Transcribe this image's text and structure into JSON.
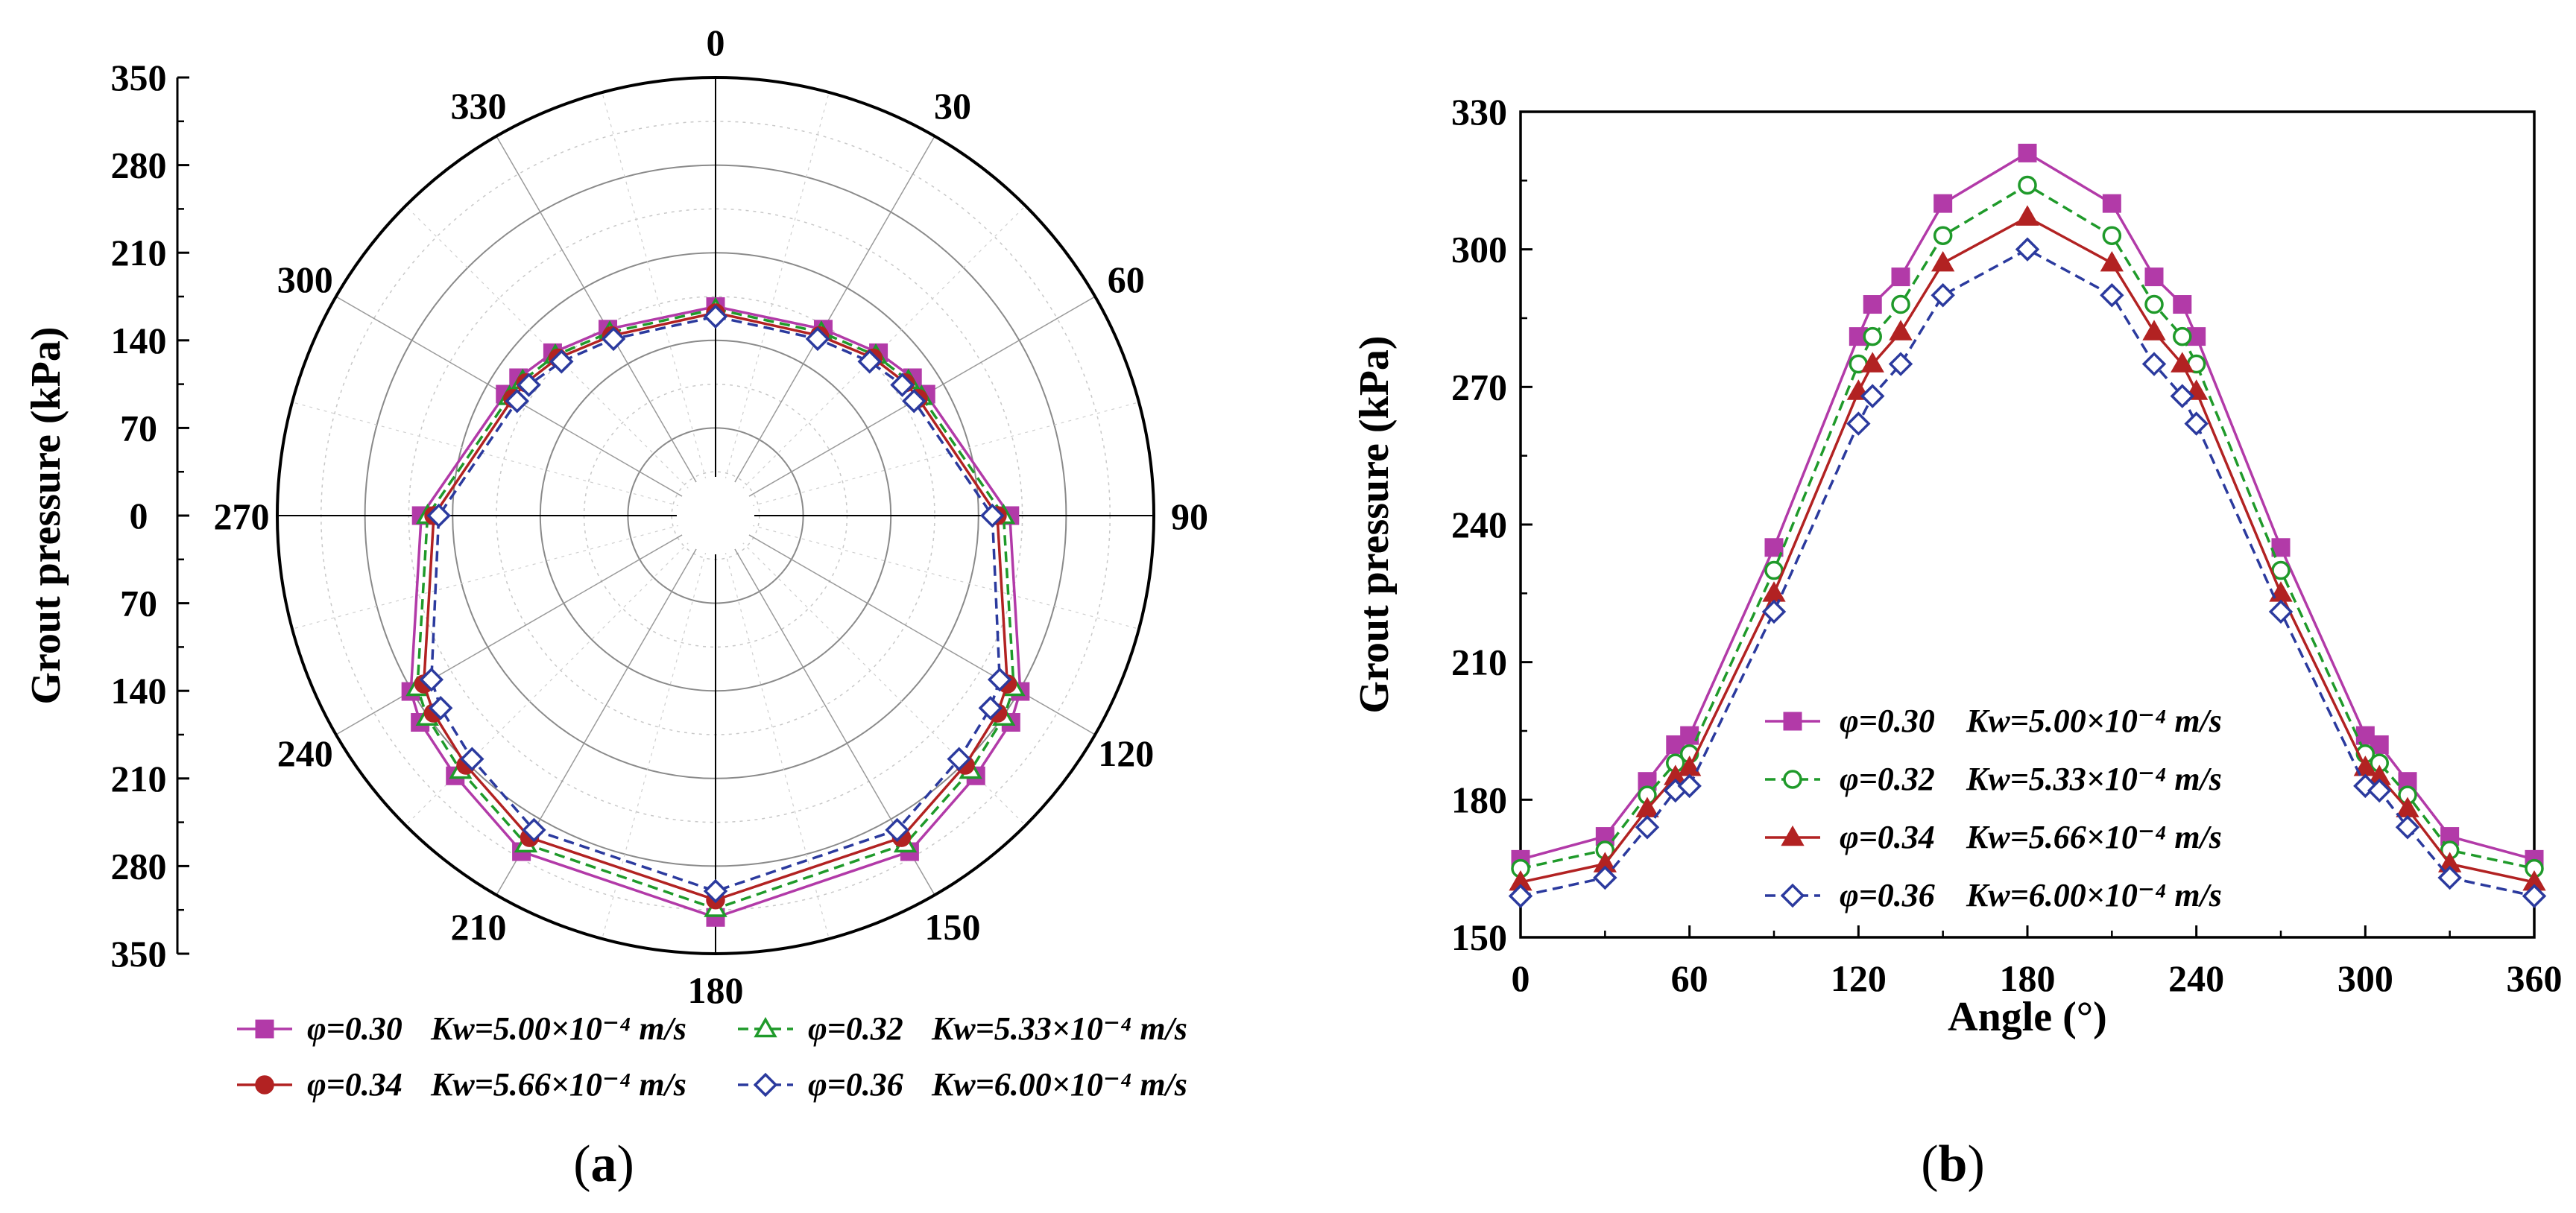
{
  "chart_data": [
    {
      "type": "polar-line",
      "panel_label": "a",
      "title": "",
      "ylabel": "Grout pressure (kPa)",
      "radial_ticks": [
        "350",
        "280",
        "210",
        "140",
        "70",
        "0",
        "70",
        "140",
        "210",
        "280",
        "350"
      ],
      "angle_ticks": [
        "0",
        "30",
        "60",
        "90",
        "120",
        "150",
        "180",
        "210",
        "240",
        "270",
        "300",
        "330"
      ],
      "rlim": [
        0,
        350
      ],
      "angles": [
        0,
        30,
        45,
        55,
        60,
        90,
        120,
        125,
        135,
        150,
        180,
        210,
        225,
        235,
        240,
        270,
        300,
        305,
        315,
        330
      ],
      "series": [
        {
          "name": "φ=0.30  Kw=5.00×10⁻⁴ m/s",
          "label_phi": "φ=0.30",
          "label_k": "Kw=5.00×10⁻⁴ m/s",
          "color": "#b23aa8",
          "dash": "",
          "marker": "square-filled",
          "values": [
            167,
            172,
            184,
            192,
            194,
            235,
            281,
            288,
            294,
            310,
            321,
            310,
            294,
            288,
            281,
            235,
            194,
            192,
            184,
            172
          ]
        },
        {
          "name": "φ=0.32  Kw=5.33×10⁻⁴ m/s",
          "label_phi": "φ=0.32",
          "label_k": "Kw=5.33×10⁻⁴ m/s",
          "color": "#1f9a2a",
          "dash": "14,8",
          "marker": "triangle-open",
          "values": [
            165,
            169,
            181,
            188,
            190,
            230,
            275,
            281,
            288,
            303,
            314,
            303,
            288,
            281,
            275,
            230,
            190,
            188,
            181,
            169
          ]
        },
        {
          "name": "φ=0.34  Kw=5.66×10⁻⁴ m/s",
          "label_phi": "φ=0.34",
          "label_k": "Kw=5.66×10⁻⁴ m/s",
          "color": "#b22222",
          "dash": "",
          "marker": "circle-filled",
          "values": [
            162,
            166,
            178,
            185,
            187,
            225,
            269,
            275,
            282,
            297,
            307,
            297,
            282,
            275,
            269,
            225,
            187,
            185,
            178,
            166
          ]
        },
        {
          "name": "φ=0.36  Kw=6.00×10⁻⁴ m/s",
          "label_phi": "φ=0.36",
          "label_k": "Kw=6.00×10⁻⁴ m/s",
          "color": "#2b3a9e",
          "dash": "14,8",
          "marker": "diamond-open",
          "values": [
            159,
            163,
            174,
            182,
            183,
            221,
            262,
            268,
            275,
            290,
            300,
            290,
            275,
            268,
            262,
            221,
            183,
            182,
            174,
            163
          ]
        }
      ]
    },
    {
      "type": "line",
      "panel_label": "b",
      "title": "",
      "xlabel": "Angle (°)",
      "ylabel": "Grout pressure (kPa)",
      "xlim": [
        0,
        360
      ],
      "ylim": [
        150,
        330
      ],
      "x_ticks": [
        "0",
        "60",
        "120",
        "180",
        "240",
        "300",
        "360"
      ],
      "y_ticks": [
        "150",
        "180",
        "210",
        "240",
        "270",
        "300",
        "330"
      ],
      "x": [
        0,
        30,
        45,
        55,
        60,
        90,
        120,
        125,
        135,
        150,
        180,
        210,
        225,
        235,
        240,
        270,
        300,
        305,
        315,
        330,
        360
      ],
      "series": [
        {
          "name": "φ=0.30  Kw=5.00×10⁻⁴ m/s",
          "label_phi": "φ=0.30",
          "label_k": "Kw=5.00×10⁻⁴ m/s",
          "color": "#b23aa8",
          "dash": "",
          "marker": "square-filled",
          "values": [
            167,
            172,
            184,
            192,
            194,
            235,
            281,
            288,
            294,
            310,
            321,
            310,
            294,
            288,
            281,
            235,
            194,
            192,
            184,
            172,
            167
          ]
        },
        {
          "name": "φ=0.32  Kw=5.33×10⁻⁴ m/s",
          "label_phi": "φ=0.32",
          "label_k": "Kw=5.33×10⁻⁴ m/s",
          "color": "#1f9a2a",
          "dash": "14,8",
          "marker": "circle-open",
          "values": [
            165,
            169,
            181,
            188,
            190,
            230,
            275,
            281,
            288,
            303,
            314,
            303,
            288,
            281,
            275,
            230,
            190,
            188,
            181,
            169,
            165
          ]
        },
        {
          "name": "φ=0.34  Kw=5.66×10⁻⁴ m/s",
          "label_phi": "φ=0.34",
          "label_k": "Kw=5.66×10⁻⁴ m/s",
          "color": "#b22222",
          "dash": "",
          "marker": "triangle-filled",
          "values": [
            162,
            166,
            178,
            185,
            187,
            225,
            269,
            275,
            282,
            297,
            307,
            297,
            282,
            275,
            269,
            225,
            187,
            185,
            178,
            166,
            162
          ]
        },
        {
          "name": "φ=0.36  Kw=6.00×10⁻⁴ m/s",
          "label_phi": "φ=0.36",
          "label_k": "Kw=6.00×10⁻⁴ m/s",
          "color": "#2b3a9e",
          "dash": "14,8",
          "marker": "diamond-open",
          "values": [
            159,
            163,
            174,
            182,
            183,
            221,
            262,
            268,
            275,
            290,
            300,
            290,
            275,
            268,
            262,
            221,
            183,
            182,
            174,
            163,
            159
          ]
        }
      ]
    }
  ]
}
